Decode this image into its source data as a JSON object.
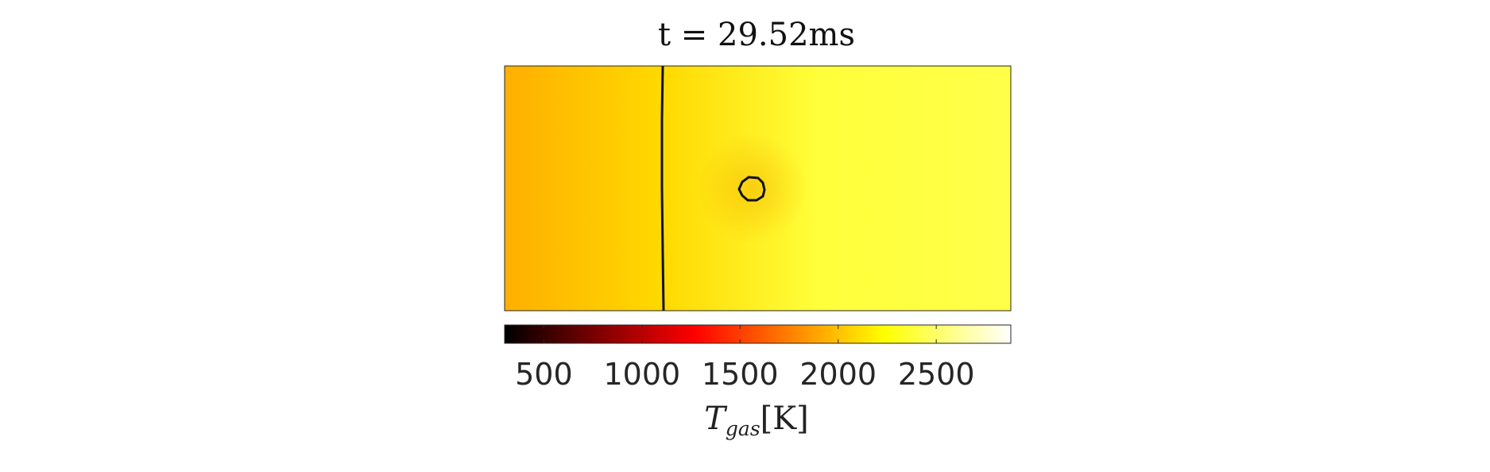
{
  "chart_data": {
    "type": "heatmap",
    "title": "t = 29.52ms",
    "field": "gas temperature",
    "colormap": "hot",
    "colorbar": {
      "label_main": "T",
      "label_subscript": "gas",
      "label_unit": "[K]",
      "range": [
        300,
        2880
      ],
      "ticks": [
        500,
        1000,
        1500,
        2000,
        2500
      ],
      "tick_labels": [
        "500",
        "1000",
        "1500",
        "2000",
        "2500"
      ],
      "orientation": "horizontal",
      "location": "below"
    },
    "temperature_field": {
      "left_edge": 1930,
      "front": 2090,
      "right_edge": 2420
    },
    "contours": [
      {
        "name": "vertical-front-contour",
        "shape": "line"
      },
      {
        "name": "droplet-contour",
        "shape": "circle"
      }
    ],
    "axes_visible": false
  }
}
